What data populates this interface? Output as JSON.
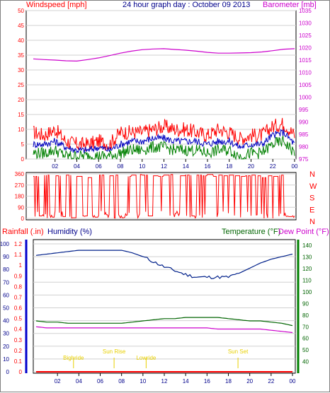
{
  "header": {
    "left_label": "Windspeed [mph]",
    "title": "24 hour graph day : October 09 2013",
    "right_label": "Barometer [mb]"
  },
  "lower_header": {
    "rainfall_label": "Rainfall (.in)",
    "humidity_label": "Humidity (%)",
    "temperature_label": "Temperature (°F)",
    "dewpoint_label": "Dew Point (°F)"
  },
  "colors": {
    "wind_gust": "#ff0000",
    "wind_avg": "#0000c0",
    "wind_min": "#008000",
    "barometer": "#cc00cc",
    "direction": "#ff0000",
    "humidity": "#00208a",
    "temperature": "#006400",
    "dewpoint": "#cc00cc",
    "rain": "#ff0000",
    "markers": "#e8d000"
  },
  "chart_data": [
    {
      "type": "line",
      "name": "windspeed-barometer",
      "x_ticks": [
        "02",
        "04",
        "06",
        "08",
        "10",
        "12",
        "14",
        "16",
        "18",
        "20",
        "22",
        "00"
      ],
      "left_axis": {
        "label": "Windspeed [mph]",
        "range": [
          0,
          50
        ],
        "ticks": [
          0,
          5,
          10,
          15,
          20,
          25,
          30,
          35,
          40,
          45,
          50
        ]
      },
      "right_axis": {
        "label": "Barometer [mb]",
        "range": [
          975,
          1035
        ],
        "ticks": [
          975,
          980,
          985,
          990,
          995,
          1000,
          1005,
          1010,
          1015,
          1020,
          1025,
          1030,
          1035
        ]
      },
      "x_hours": [
        0,
        1,
        2,
        3,
        4,
        5,
        6,
        7,
        8,
        9,
        10,
        11,
        12,
        13,
        14,
        15,
        16,
        17,
        18,
        19,
        20,
        21,
        22,
        23,
        24
      ],
      "series": [
        {
          "axis": "left",
          "values": [
            9,
            8,
            10,
            6,
            5,
            5,
            6,
            5,
            9,
            9,
            9,
            10,
            11,
            10,
            10,
            9,
            8,
            10,
            9,
            7,
            8,
            8,
            11,
            12,
            8
          ]
        },
        {
          "axis": "left",
          "values": [
            5,
            5,
            6,
            4,
            3,
            3,
            4,
            3,
            5,
            6,
            6,
            7,
            7,
            6,
            6,
            6,
            5,
            6,
            6,
            4,
            5,
            5,
            8,
            9,
            5
          ]
        },
        {
          "axis": "left",
          "values": [
            2,
            2,
            3,
            1,
            1,
            1,
            1,
            1,
            2,
            3,
            3,
            4,
            4,
            3,
            3,
            3,
            2,
            3,
            3,
            1,
            2,
            2,
            5,
            6,
            2
          ]
        },
        {
          "axis": "right",
          "values": [
            1015.5,
            1015.2,
            1015.0,
            1014.7,
            1014.6,
            1015.2,
            1015.9,
            1016.8,
            1017.8,
            1018.6,
            1019.2,
            1019.5,
            1019.6,
            1019.3,
            1019.0,
            1018.6,
            1018.1,
            1017.8,
            1017.8,
            1017.9,
            1018.0,
            1018.3,
            1018.8,
            1019.4,
            1019.6
          ]
        }
      ]
    },
    {
      "type": "line",
      "name": "wind-direction",
      "left_axis": {
        "range": [
          0,
          360
        ],
        "ticks": [
          0,
          90,
          180,
          270,
          360
        ]
      },
      "right_labels": [
        "N",
        "W",
        "S",
        "E",
        "N"
      ],
      "x_hours": [
        0,
        0.5,
        1,
        1.5,
        2,
        2.5,
        3,
        3.5,
        4,
        4.5,
        5,
        5.5,
        6,
        6.5,
        7,
        7.5,
        8,
        8.5,
        9,
        9.5,
        10,
        10.5,
        11,
        11.5,
        12,
        12.5,
        13,
        13.5,
        14,
        14.5,
        15,
        15.5,
        16,
        16.5,
        17,
        17.5,
        18,
        18.5,
        19,
        19.5,
        20,
        20.5,
        21,
        21.5,
        22,
        22.5,
        23,
        23.5,
        24
      ],
      "values": [
        340,
        20,
        350,
        10,
        345,
        15,
        350,
        5,
        340,
        20,
        330,
        10,
        350,
        30,
        345,
        350,
        5,
        340,
        350,
        355,
        350,
        20,
        345,
        340,
        350,
        355,
        40,
        345,
        350,
        20,
        350,
        345,
        355,
        340,
        350,
        345,
        350,
        345,
        340,
        345,
        350,
        345,
        330,
        345,
        340,
        350,
        20,
        15,
        345
      ]
    },
    {
      "type": "line",
      "name": "rain-humidity-temperature",
      "left_axis": {
        "label": "Rainfall (.in)",
        "range": [
          0,
          1.2
        ],
        "ticks": [
          0,
          0.1,
          0.2,
          0.3,
          0.4,
          0.5,
          0.6,
          0.7,
          0.8,
          0.9,
          1,
          1.1,
          1.2
        ]
      },
      "humidity_axis": {
        "label": "Humidity (%)",
        "range": [
          0,
          100
        ],
        "ticks": [
          0,
          10,
          20,
          30,
          40,
          50,
          60,
          70,
          80,
          90,
          100
        ]
      },
      "right_axis": {
        "label": "Temperature (°F)",
        "range": [
          30,
          145
        ],
        "ticks": [
          40,
          50,
          60,
          70,
          80,
          90,
          100,
          110,
          120,
          130,
          140
        ]
      },
      "x_hours": [
        0,
        1,
        2,
        3,
        4,
        5,
        6,
        7,
        8,
        9,
        10,
        11,
        12,
        13,
        14,
        15,
        16,
        17,
        18,
        19,
        20,
        21,
        22,
        23,
        24
      ],
      "series": [
        {
          "axis": "humidity",
          "values": [
            91,
            92,
            93,
            94,
            95,
            95,
            95,
            95,
            95,
            93,
            90,
            86,
            82,
            79,
            76,
            74,
            74,
            74,
            74,
            77,
            81,
            85,
            88,
            90,
            92
          ]
        },
        {
          "axis": "right",
          "values": [
            75,
            74,
            74,
            73,
            73,
            73,
            73,
            73,
            73,
            74,
            75,
            76,
            77,
            77,
            78,
            78,
            78,
            78,
            77,
            76,
            75,
            75,
            74,
            73,
            71
          ]
        },
        {
          "axis": "right",
          "values": [
            70,
            69,
            69,
            69,
            69,
            69,
            69,
            69,
            69,
            69,
            69,
            69,
            69,
            69,
            69,
            69,
            69,
            68,
            68,
            68,
            68,
            68,
            67,
            66,
            65
          ]
        },
        {
          "axis": "left",
          "values": [
            0,
            0,
            0,
            0,
            0,
            0,
            0,
            0,
            0,
            0,
            0,
            0,
            0,
            0,
            0,
            0,
            0,
            0,
            0,
            0,
            0,
            0,
            0,
            0,
            0
          ]
        }
      ],
      "annotations": [
        {
          "text": "Bighride",
          "hour": 3.5
        },
        {
          "text": "Sun Rise",
          "hour": 7.3
        },
        {
          "text": "Lowride",
          "hour": 10.3
        },
        {
          "text": "Sun Set",
          "hour": 18.9
        }
      ]
    }
  ]
}
